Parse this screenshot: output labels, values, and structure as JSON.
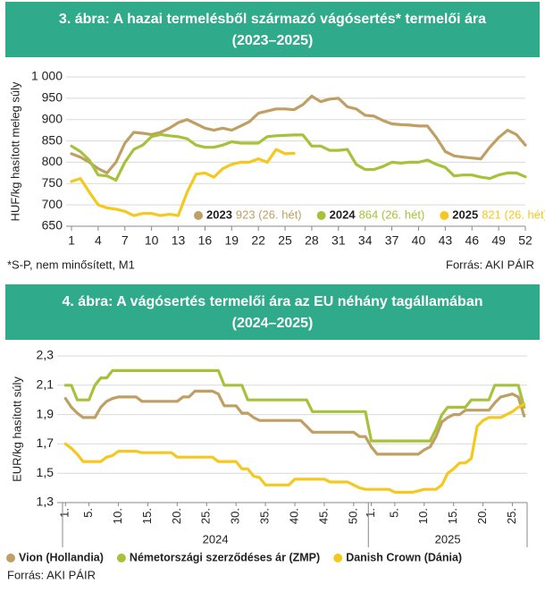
{
  "chart_data": [
    {
      "type": "line",
      "title": "3. ábra: A hazai termelésből származó vágósertés* termelői ára",
      "subtitle": "(2023–2025)",
      "ylabel": "HUF/kg hasított meleg súly",
      "footnote": "*S-P, nem minősített, M1",
      "source": "Forrás: AKI PÁIR",
      "x": [
        1,
        2,
        3,
        4,
        5,
        6,
        7,
        8,
        9,
        10,
        11,
        12,
        13,
        14,
        15,
        16,
        17,
        18,
        19,
        20,
        21,
        22,
        23,
        24,
        25,
        26,
        27,
        28,
        29,
        30,
        31,
        32,
        33,
        34,
        35,
        36,
        37,
        38,
        39,
        40,
        41,
        42,
        43,
        44,
        45,
        46,
        47,
        48,
        49,
        50,
        51,
        52
      ],
      "xlim": [
        1,
        52
      ],
      "xticks": [
        1,
        4,
        7,
        10,
        13,
        16,
        19,
        22,
        25,
        28,
        31,
        34,
        37,
        40,
        43,
        46,
        49,
        52
      ],
      "ylim": [
        650,
        1000
      ],
      "yticks": [
        650,
        700,
        750,
        800,
        850,
        900,
        950,
        {
          "value": 1000,
          "label": "1 000"
        }
      ],
      "grid": true,
      "series": [
        {
          "name": "2023",
          "note": "923 (26. hét)",
          "color": "#bf9f63",
          "values": [
            820,
            812,
            800,
            785,
            775,
            800,
            845,
            870,
            868,
            865,
            870,
            880,
            893,
            900,
            890,
            880,
            875,
            880,
            875,
            885,
            895,
            915,
            920,
            925,
            925,
            923,
            935,
            955,
            942,
            948,
            950,
            930,
            925,
            910,
            908,
            898,
            890,
            888,
            887,
            885,
            885,
            858,
            825,
            815,
            812,
            810,
            808,
            835,
            858,
            875,
            865,
            840
          ]
        },
        {
          "name": "2024",
          "note": "864 (26. hét)",
          "color": "#a6c23a",
          "values": [
            838,
            825,
            805,
            770,
            768,
            758,
            800,
            830,
            840,
            860,
            865,
            862,
            860,
            855,
            840,
            835,
            835,
            840,
            848,
            845,
            845,
            845,
            860,
            862,
            863,
            864,
            864,
            838,
            838,
            828,
            828,
            830,
            795,
            783,
            783,
            790,
            800,
            798,
            800,
            800,
            805,
            795,
            788,
            768,
            770,
            770,
            765,
            762,
            770,
            775,
            775,
            766
          ]
        },
        {
          "name": "2025",
          "note": "821 (26. hét)",
          "color": "#f5c81d",
          "values": [
            755,
            762,
            730,
            700,
            693,
            690,
            685,
            675,
            680,
            680,
            675,
            678,
            675,
            730,
            772,
            775,
            765,
            785,
            795,
            800,
            800,
            808,
            800,
            830,
            820,
            821,
            null,
            null,
            null,
            null,
            null,
            null,
            null,
            null,
            null,
            null,
            null,
            null,
            null,
            null,
            null,
            null,
            null,
            null,
            null,
            null,
            null,
            null,
            null,
            null,
            null,
            null
          ]
        }
      ]
    },
    {
      "type": "line",
      "title": "4. ábra: A vágósertés termelői ára az EU néhány tagállamában",
      "subtitle": "(2024–2025)",
      "ylabel": "EUR/kg hasított súly",
      "source": "Forrás: AKI PÁIR",
      "categories": [
        "1.",
        null,
        null,
        null,
        "5.",
        null,
        null,
        null,
        null,
        "10.",
        null,
        null,
        null,
        null,
        "15.",
        null,
        null,
        null,
        null,
        "20.",
        null,
        null,
        null,
        null,
        "25.",
        null,
        null,
        null,
        null,
        "30.",
        null,
        null,
        null,
        null,
        "35.",
        null,
        null,
        null,
        null,
        "40.",
        null,
        null,
        null,
        null,
        "45.",
        null,
        null,
        null,
        null,
        "50.",
        null,
        null,
        "1.",
        null,
        null,
        null,
        "5.",
        null,
        null,
        null,
        null,
        "10.",
        null,
        null,
        null,
        null,
        "15.",
        null,
        null,
        null,
        null,
        "20.",
        null,
        null,
        null,
        null,
        "25.",
        null,
        null
      ],
      "x_groups": [
        "2024",
        "2025"
      ],
      "ylim": [
        1.3,
        2.3
      ],
      "yticks": [
        {
          "value": 1.3,
          "label": "1,3"
        },
        {
          "value": 1.5,
          "label": "1,5"
        },
        {
          "value": 1.7,
          "label": "1,7"
        },
        {
          "value": 1.9,
          "label": "1,9"
        },
        {
          "value": 2.1,
          "label": "2,1"
        },
        {
          "value": 2.3,
          "label": "2,3"
        }
      ],
      "grid": true,
      "series": [
        {
          "name": "Vion (Hollandia)",
          "color": "#bf9f63",
          "values": [
            2.01,
            1.95,
            1.91,
            1.88,
            1.88,
            1.88,
            1.95,
            1.99,
            2.01,
            2.02,
            2.02,
            2.02,
            2.02,
            1.99,
            1.99,
            1.99,
            1.99,
            1.99,
            1.99,
            1.99,
            2.02,
            2.02,
            2.06,
            2.06,
            2.06,
            2.06,
            2.04,
            1.96,
            1.96,
            1.96,
            1.91,
            1.91,
            1.88,
            1.86,
            1.86,
            1.86,
            1.86,
            1.86,
            1.86,
            1.86,
            1.86,
            1.82,
            1.78,
            1.78,
            1.78,
            1.78,
            1.78,
            1.78,
            1.78,
            1.78,
            1.75,
            1.75,
            1.68,
            1.63,
            1.63,
            1.63,
            1.63,
            1.63,
            1.63,
            1.63,
            1.63,
            1.66,
            1.68,
            1.75,
            1.85,
            1.88,
            1.9,
            1.9,
            1.93,
            1.93,
            1.93,
            1.93,
            1.93,
            1.98,
            2.02,
            2.03,
            2.04,
            2.02,
            1.89
          ]
        },
        {
          "name": "Németországi szerződéses ár (ZMP)",
          "color": "#a6c23a",
          "values": [
            2.1,
            2.1,
            2.0,
            2.0,
            2.0,
            2.1,
            2.15,
            2.15,
            2.2,
            2.2,
            2.2,
            2.2,
            2.2,
            2.2,
            2.2,
            2.2,
            2.2,
            2.2,
            2.2,
            2.2,
            2.2,
            2.2,
            2.2,
            2.2,
            2.2,
            2.2,
            2.2,
            2.1,
            2.1,
            2.1,
            2.1,
            2.0,
            2.0,
            2.0,
            2.0,
            2.0,
            2.0,
            2.0,
            2.0,
            2.0,
            2.0,
            2.0,
            1.92,
            1.92,
            1.92,
            1.92,
            1.92,
            1.92,
            1.92,
            1.92,
            1.92,
            1.92,
            1.72,
            1.72,
            1.72,
            1.72,
            1.72,
            1.72,
            1.72,
            1.72,
            1.72,
            1.72,
            1.72,
            1.8,
            1.9,
            1.95,
            1.95,
            1.95,
            1.95,
            2.0,
            2.0,
            2.0,
            2.0,
            2.1,
            2.1,
            2.1,
            2.1,
            2.1,
            1.95
          ]
        },
        {
          "name": "Danish Crown (Dánia)",
          "color": "#f5c81d",
          "values": [
            1.7,
            1.67,
            1.63,
            1.58,
            1.58,
            1.58,
            1.58,
            1.61,
            1.62,
            1.65,
            1.65,
            1.65,
            1.65,
            1.64,
            1.64,
            1.64,
            1.64,
            1.64,
            1.64,
            1.61,
            1.61,
            1.61,
            1.61,
            1.61,
            1.61,
            1.61,
            1.58,
            1.58,
            1.58,
            1.58,
            1.53,
            1.53,
            1.48,
            1.47,
            1.42,
            1.42,
            1.42,
            1.42,
            1.42,
            1.46,
            1.46,
            1.46,
            1.46,
            1.46,
            1.46,
            1.44,
            1.44,
            1.44,
            1.44,
            1.42,
            1.4,
            1.39,
            1.39,
            1.39,
            1.39,
            1.39,
            1.37,
            1.37,
            1.37,
            1.37,
            1.38,
            1.39,
            1.39,
            1.39,
            1.42,
            1.5,
            1.53,
            1.57,
            1.57,
            1.6,
            1.82,
            1.86,
            1.88,
            1.88,
            1.88,
            1.9,
            1.92,
            1.95,
            1.97
          ]
        }
      ]
    }
  ]
}
